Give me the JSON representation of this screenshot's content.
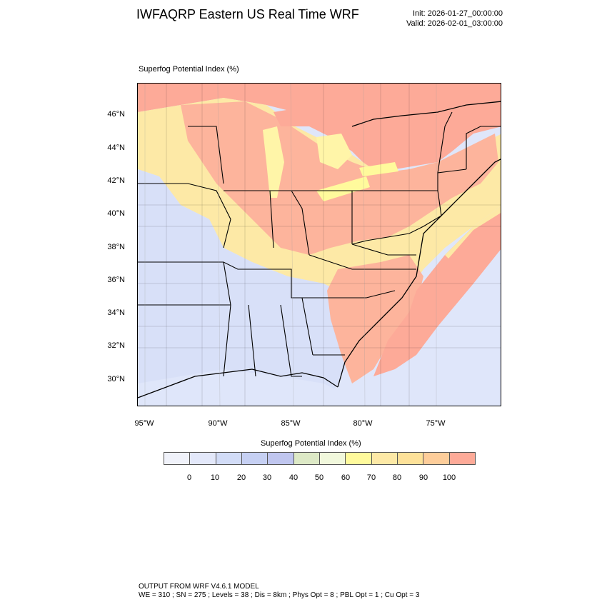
{
  "header": {
    "title": "IWFAQRP Eastern US Real Time WRF",
    "init": "Init: 2026-01-27_00:00:00",
    "valid": "Valid: 2026-02-01_03:00:00"
  },
  "map": {
    "field_title": "Superfog Potential Index   (%)",
    "lat_labels": [
      "46°N",
      "44°N",
      "42°N",
      "40°N",
      "38°N",
      "36°N",
      "34°N",
      "32°N",
      "30°N"
    ],
    "lon_labels": [
      "95°W",
      "90°W",
      "85°W",
      "80°W",
      "75°W"
    ]
  },
  "colorbar": {
    "title": "Superfog Potential Index  (%)",
    "colors": [
      "#f0f2fa",
      "#e3e8fa",
      "#d2dcf7",
      "#c6d0f3",
      "#c0c6ef",
      "#dde9c6",
      "#f1f8dc",
      "#fffa9c",
      "#fde9a6",
      "#fde199",
      "#fdcd9a",
      "#fdaa98"
    ],
    "labels": [
      "0",
      "10",
      "20",
      "30",
      "40",
      "50",
      "60",
      "70",
      "80",
      "90",
      "100"
    ]
  },
  "footer": {
    "line1": "OUTPUT FROM WRF V4.6.1 MODEL",
    "line2": "WE = 310 ; SN = 275 ; Levels = 38 ; Dis = 8km ; Phys Opt = 8 ; PBL Opt = 1 ; Cu Opt = 3"
  }
}
